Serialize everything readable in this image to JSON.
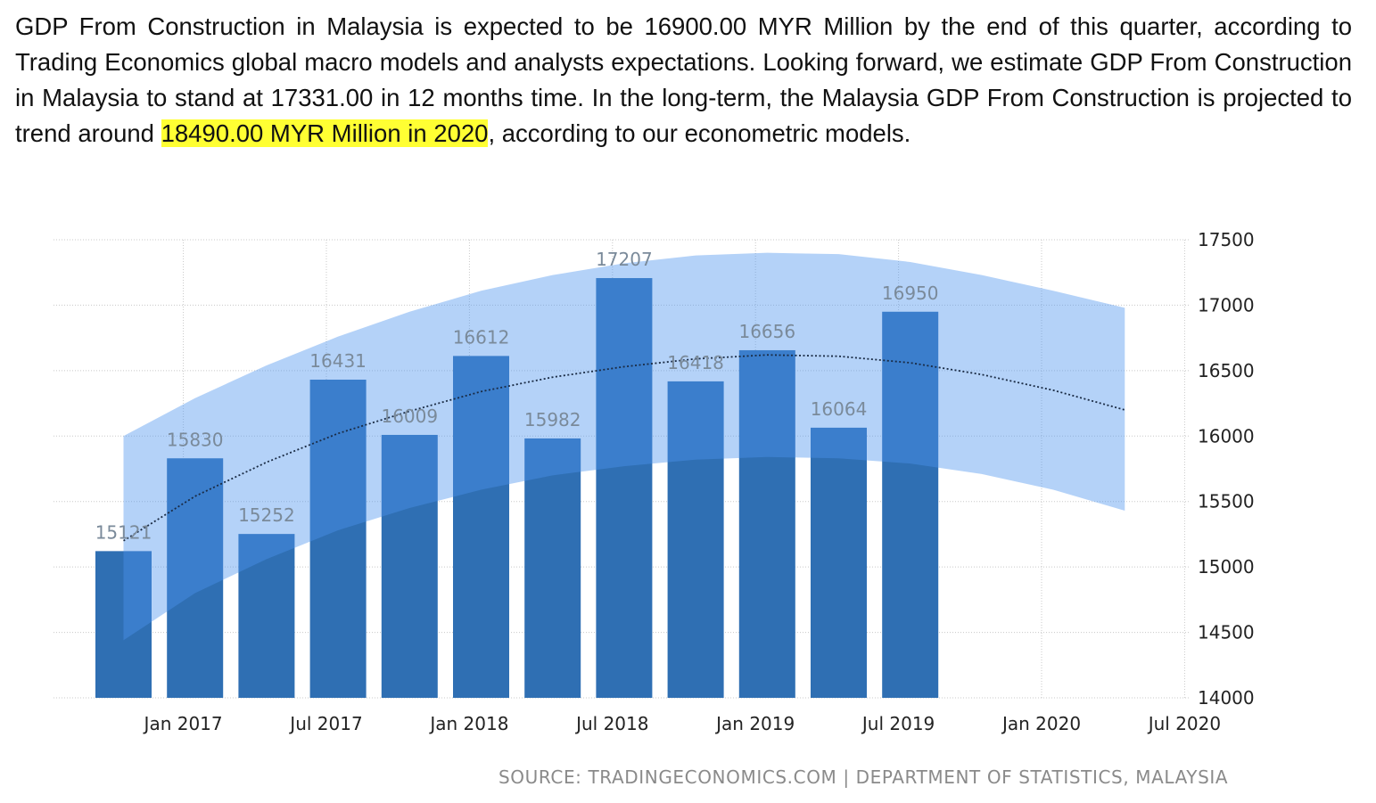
{
  "intro": {
    "before": "GDP From Construction in Malaysia is expected to be 16900.00 MYR Million by the end of this quarter, according to Trading Economics global macro models and analysts expectations. Looking forward, we estimate GDP From Construction in Malaysia to stand at 17331.00 in 12 months time. In the long-term, the Malaysia GDP From Construction is projected to trend around ",
    "highlight": "18490.00 MYR Million in 2020",
    "after": ", according to our econometric models.",
    "highlight_color": "#ffff33"
  },
  "chart_data": {
    "type": "bar",
    "categories": [
      "2016-Q4",
      "2017-Q1",
      "2017-Q2",
      "2017-Q3",
      "2017-Q4",
      "2018-Q1",
      "2018-Q2",
      "2018-Q3",
      "2018-Q4",
      "2019-Q1",
      "2019-Q2",
      "2019-Q3"
    ],
    "values": [
      15121,
      15830,
      15252,
      16431,
      16009,
      16612,
      15982,
      17207,
      16418,
      16656,
      16064,
      16950
    ],
    "x_tick_labels": [
      "Jan 2017",
      "Jul 2017",
      "Jan 2018",
      "Jul 2018",
      "Jan 2019",
      "Jul 2019",
      "Jan 2020",
      "Jul 2020"
    ],
    "y_ticks": [
      14000,
      14500,
      15000,
      15500,
      16000,
      16500,
      17000,
      17500
    ],
    "ylim": [
      14000,
      17500
    ],
    "y_axis_side": "right",
    "grid": true,
    "bar_color": "#2f6fb3",
    "trend": {
      "x": [
        "2016-Q4",
        "2017-Q1",
        "2017-Q2",
        "2017-Q3",
        "2017-Q4",
        "2018-Q1",
        "2018-Q2",
        "2018-Q3",
        "2018-Q4",
        "2019-Q1",
        "2019-Q2",
        "2019-Q3",
        "2019-Q4",
        "2020-Q1",
        "2020-Q2"
      ],
      "values": [
        15200,
        15540,
        15800,
        16020,
        16190,
        16340,
        16450,
        16530,
        16590,
        16620,
        16610,
        16560,
        16470,
        16350,
        16200
      ],
      "color": "#1a2b44"
    },
    "band": {
      "x": [
        "2016-Q4",
        "2017-Q1",
        "2017-Q2",
        "2017-Q3",
        "2017-Q4",
        "2018-Q1",
        "2018-Q2",
        "2018-Q3",
        "2018-Q4",
        "2019-Q1",
        "2019-Q2",
        "2019-Q3",
        "2019-Q4",
        "2020-Q1",
        "2020-Q2"
      ],
      "upper": [
        16000,
        16290,
        16540,
        16760,
        16950,
        17110,
        17230,
        17320,
        17380,
        17400,
        17390,
        17330,
        17230,
        17110,
        16980
      ],
      "lower": [
        14440,
        14800,
        15060,
        15280,
        15450,
        15590,
        15700,
        15770,
        15820,
        15840,
        15830,
        15790,
        15710,
        15590,
        15430
      ],
      "color": "#4d94ef"
    },
    "source": "SOURCE: TRADINGECONOMICS.COM | DEPARTMENT OF STATISTICS, MALAYSIA"
  }
}
